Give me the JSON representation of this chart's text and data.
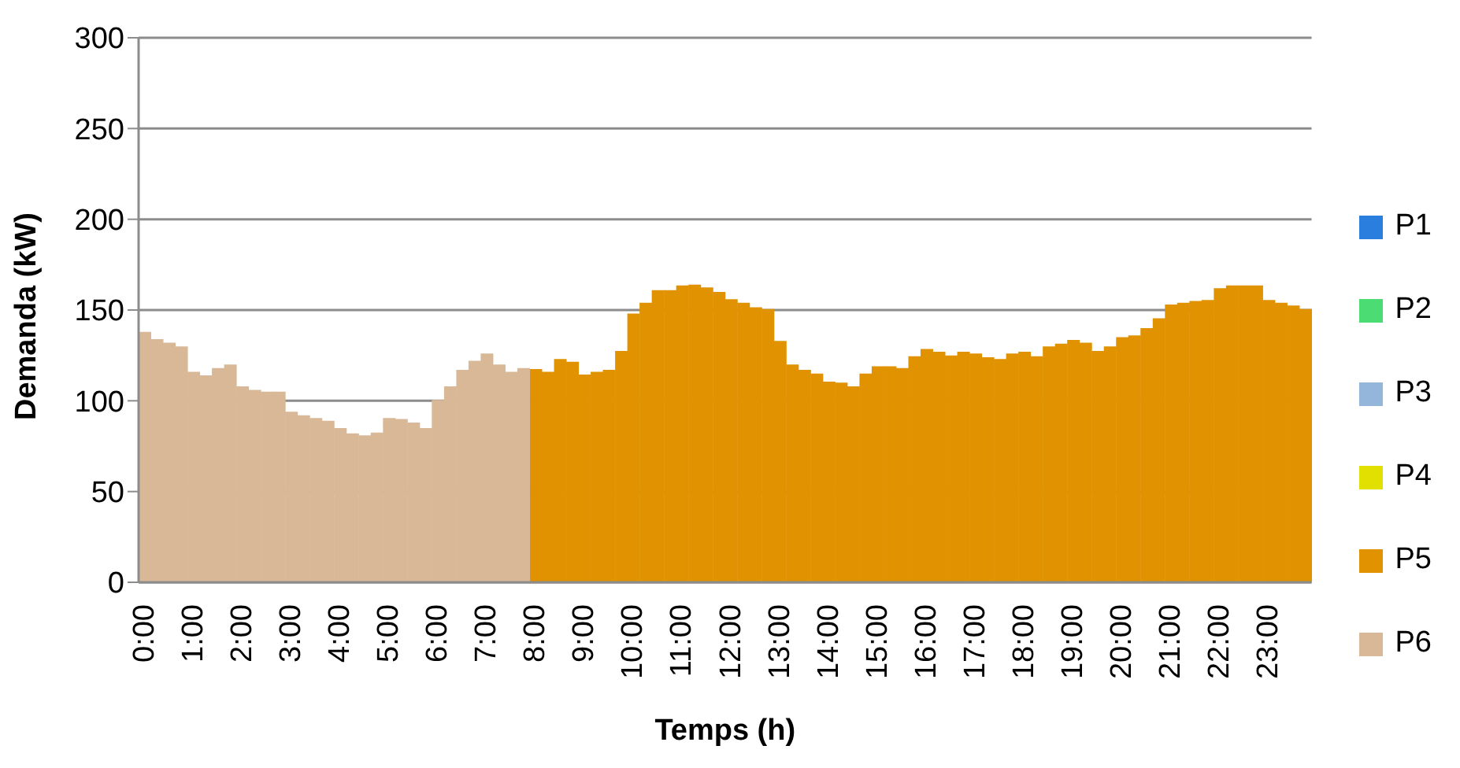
{
  "chart_data": {
    "type": "bar",
    "stacked": true,
    "xlabel": "Temps (h)",
    "ylabel": "Demanda (kW)",
    "categories": [
      "0:00",
      null,
      null,
      null,
      "1:00",
      null,
      null,
      null,
      "2:00",
      null,
      null,
      null,
      "3:00",
      null,
      null,
      null,
      "4:00",
      null,
      null,
      null,
      "5:00",
      null,
      null,
      null,
      "6:00",
      null,
      null,
      null,
      "7:00",
      null,
      null,
      null,
      "8:00",
      null,
      null,
      null,
      "9:00",
      null,
      null,
      null,
      "10:00",
      null,
      null,
      null,
      "11:00",
      null,
      null,
      null,
      "12:00",
      null,
      null,
      null,
      "13:00",
      null,
      null,
      null,
      "14:00",
      null,
      null,
      null,
      "15:00",
      null,
      null,
      null,
      "16:00",
      null,
      null,
      null,
      "17:00",
      null,
      null,
      null,
      "18:00",
      null,
      null,
      null,
      "19:00",
      null,
      null,
      null,
      "20:00",
      null,
      null,
      null,
      "21:00",
      null,
      null,
      null,
      "22:00",
      null,
      null,
      null,
      "23:00",
      null,
      null,
      null
    ],
    "series": [
      {
        "name": "P1",
        "color": "#2a7fde",
        "values": [
          null,
          null,
          null,
          null,
          null,
          null,
          null,
          null,
          null,
          null,
          null,
          null,
          null,
          null,
          null,
          null,
          null,
          null,
          null,
          null,
          null,
          null,
          null,
          null,
          null,
          null,
          null,
          null,
          null,
          null,
          null,
          null,
          null,
          null,
          null,
          null,
          null,
          null,
          null,
          null,
          null,
          null,
          null,
          null,
          null,
          null,
          null,
          null,
          null,
          null,
          null,
          null,
          null,
          null,
          null,
          null,
          null,
          null,
          null,
          null,
          null,
          null,
          null,
          null,
          null,
          null,
          null,
          null,
          null,
          null,
          null,
          null,
          null,
          null,
          null,
          null,
          null,
          null,
          null,
          null,
          null,
          null,
          null,
          null,
          null,
          null,
          null,
          null,
          null,
          null,
          null,
          null,
          null,
          null,
          null,
          null
        ]
      },
      {
        "name": "P2",
        "color": "#4cdc74",
        "values": [
          null,
          null,
          null,
          null,
          null,
          null,
          null,
          null,
          null,
          null,
          null,
          null,
          null,
          null,
          null,
          null,
          null,
          null,
          null,
          null,
          null,
          null,
          null,
          null,
          null,
          null,
          null,
          null,
          null,
          null,
          null,
          null,
          null,
          null,
          null,
          null,
          null,
          null,
          null,
          null,
          null,
          null,
          null,
          null,
          null,
          null,
          null,
          null,
          null,
          null,
          null,
          null,
          null,
          null,
          null,
          null,
          null,
          null,
          null,
          null,
          null,
          null,
          null,
          null,
          null,
          null,
          null,
          null,
          null,
          null,
          null,
          null,
          null,
          null,
          null,
          null,
          null,
          null,
          null,
          null,
          null,
          null,
          null,
          null,
          null,
          null,
          null,
          null,
          null,
          null,
          null,
          null,
          null,
          null,
          null,
          null
        ]
      },
      {
        "name": "P3",
        "color": "#94b6da",
        "values": [
          null,
          null,
          null,
          null,
          null,
          null,
          null,
          null,
          null,
          null,
          null,
          null,
          null,
          null,
          null,
          null,
          null,
          null,
          null,
          null,
          null,
          null,
          null,
          null,
          null,
          null,
          null,
          null,
          null,
          null,
          null,
          null,
          null,
          null,
          null,
          null,
          null,
          null,
          null,
          null,
          null,
          null,
          null,
          null,
          null,
          null,
          null,
          null,
          null,
          null,
          null,
          null,
          null,
          null,
          null,
          null,
          null,
          null,
          null,
          null,
          null,
          null,
          null,
          null,
          null,
          null,
          null,
          null,
          null,
          null,
          null,
          null,
          null,
          null,
          null,
          null,
          null,
          null,
          null,
          null,
          null,
          null,
          null,
          null,
          null,
          null,
          null,
          null,
          null,
          null,
          null,
          null,
          null,
          null,
          null,
          null
        ]
      },
      {
        "name": "P4",
        "color": "#e2e000",
        "values": [
          null,
          null,
          null,
          null,
          null,
          null,
          null,
          null,
          null,
          null,
          null,
          null,
          null,
          null,
          null,
          null,
          null,
          null,
          null,
          null,
          null,
          null,
          null,
          null,
          null,
          null,
          null,
          null,
          null,
          null,
          null,
          null,
          null,
          null,
          null,
          null,
          null,
          null,
          null,
          null,
          null,
          null,
          null,
          null,
          null,
          null,
          null,
          null,
          null,
          null,
          null,
          null,
          null,
          null,
          null,
          null,
          null,
          null,
          null,
          null,
          null,
          null,
          null,
          null,
          null,
          null,
          null,
          null,
          null,
          null,
          null,
          null,
          null,
          null,
          null,
          null,
          null,
          null,
          null,
          null,
          null,
          null,
          null,
          null,
          null,
          null,
          null,
          null,
          null,
          null,
          null,
          null,
          null,
          null,
          null,
          null
        ]
      },
      {
        "name": "P5",
        "color": "#e09200",
        "values": [
          null,
          null,
          null,
          null,
          null,
          null,
          null,
          null,
          null,
          null,
          null,
          null,
          null,
          null,
          null,
          null,
          null,
          null,
          null,
          null,
          null,
          null,
          null,
          null,
          null,
          null,
          null,
          null,
          null,
          null,
          null,
          null,
          117.5,
          116,
          123,
          121.5,
          114.5,
          116,
          117,
          127.5,
          148,
          154,
          161,
          161,
          163.5,
          164,
          162.5,
          160,
          156,
          154,
          151.5,
          150.5,
          133,
          120,
          117,
          115,
          110.5,
          110,
          108,
          115,
          119,
          119,
          118,
          124.5,
          128.5,
          127,
          125,
          127,
          126,
          124,
          123,
          126,
          127,
          124.5,
          130,
          131.5,
          133.5,
          132,
          127.5,
          130,
          135,
          136,
          140,
          145.5,
          153,
          154,
          155,
          155.5,
          162,
          163.5,
          163.5,
          163.5,
          155.5,
          154,
          152.5,
          150.5
        ]
      },
      {
        "name": "P6",
        "color": "#d8b896",
        "values": [
          138,
          134,
          132,
          130,
          116,
          114,
          118,
          120,
          108,
          106,
          105,
          105,
          94,
          92,
          90.5,
          89,
          85,
          82,
          81,
          82.5,
          90.5,
          90,
          88,
          85,
          100.5,
          108,
          117,
          122,
          126,
          120,
          116,
          118,
          null,
          null,
          null,
          null,
          null,
          null,
          null,
          null,
          null,
          null,
          null,
          null,
          null,
          null,
          null,
          null,
          null,
          null,
          null,
          null,
          null,
          null,
          null,
          null,
          null,
          null,
          null,
          null,
          null,
          null,
          null,
          null,
          null,
          null,
          null,
          null,
          null,
          null,
          null,
          null,
          null,
          null,
          null,
          null,
          null,
          null,
          null,
          null,
          null,
          null,
          null,
          null,
          null,
          null,
          null,
          null,
          null,
          null,
          null,
          null,
          null,
          null,
          null,
          null
        ]
      }
    ],
    "ylim": [
      0,
      300
    ],
    "yticks": [
      0,
      50,
      100,
      150,
      200,
      250,
      300
    ],
    "grid": "y",
    "legend": "right"
  }
}
